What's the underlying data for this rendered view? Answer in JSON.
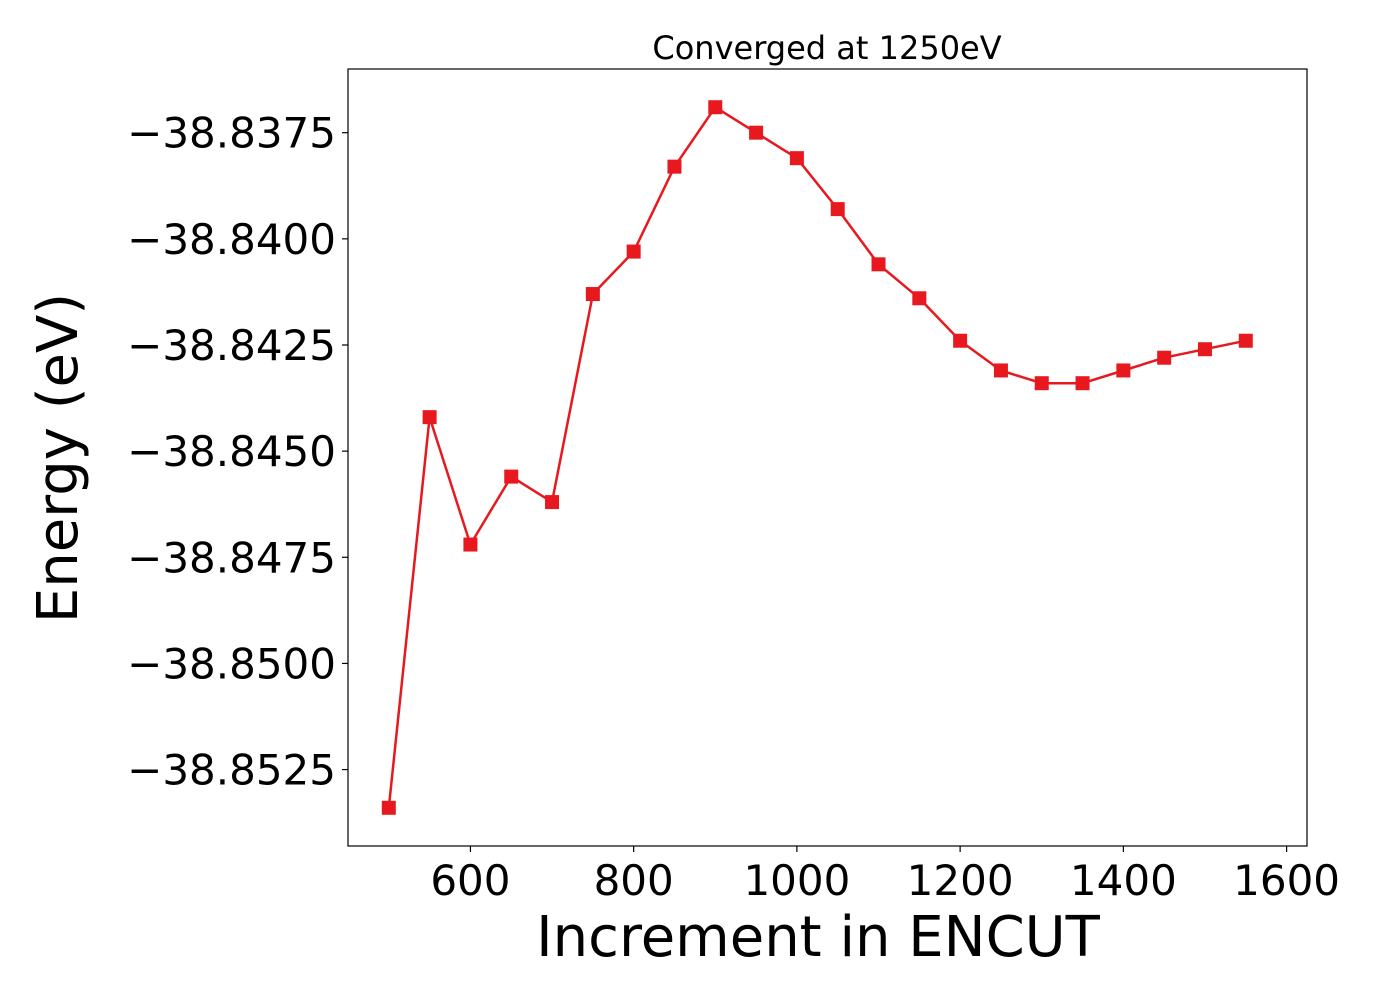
{
  "chart_data": {
    "type": "line",
    "title": "Converged at 1250eV",
    "xlabel": "Increment in ENCUT",
    "ylabel": "Energy (eV)",
    "xlim": [
      450,
      1625
    ],
    "ylim": [
      -38.8543,
      -38.836
    ],
    "xticks": [
      600,
      800,
      1000,
      1200,
      1400,
      1600
    ],
    "xtick_labels": [
      "600",
      "800",
      "1000",
      "1200",
      "1400",
      "1600"
    ],
    "yticks": [
      -38.8375,
      -38.84,
      -38.8425,
      -38.845,
      -38.8475,
      -38.85,
      -38.8525
    ],
    "ytick_labels": [
      "−38.8375",
      "−38.8400",
      "−38.8425",
      "−38.8450",
      "−38.8475",
      "−38.8500",
      "−38.8525"
    ],
    "grid": false,
    "marker": "square",
    "color": "#e8191e",
    "x": [
      500,
      550,
      600,
      650,
      700,
      750,
      800,
      850,
      900,
      950,
      1000,
      1050,
      1100,
      1150,
      1200,
      1250,
      1300,
      1350,
      1400,
      1450,
      1500,
      1550
    ],
    "y": [
      -38.8534,
      -38.8442,
      -38.8472,
      -38.8456,
      -38.8462,
      -38.8413,
      -38.8403,
      -38.8383,
      -38.8369,
      -38.8375,
      -38.8381,
      -38.8393,
      -38.8406,
      -38.8414,
      -38.8424,
      -38.8431,
      -38.8434,
      -38.8434,
      -38.8431,
      -38.8428,
      -38.8426,
      -38.8424
    ]
  }
}
